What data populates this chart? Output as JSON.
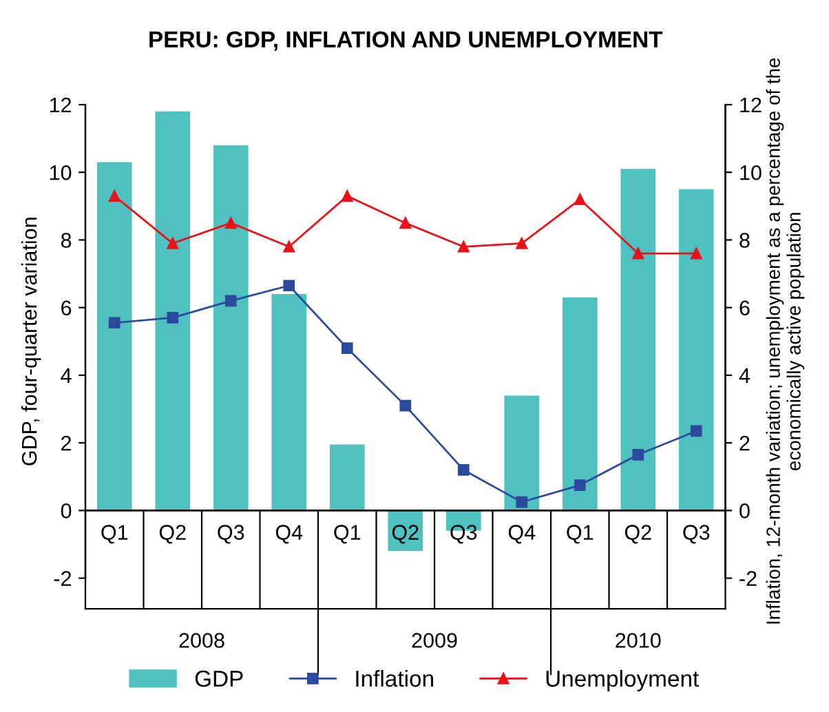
{
  "chart_data": {
    "type": "bar",
    "title": "PERU: GDP, INFLATION AND UNEMPLOYMENT",
    "ylabel": "GDP, four-quarter variation",
    "y2label": "Inflation, 12-month variation; unemployment as a percentage of the economically active population",
    "categories": [
      "Q1",
      "Q2",
      "Q3",
      "Q4",
      "Q1",
      "Q2",
      "Q3",
      "Q4",
      "Q1",
      "Q2",
      "Q3"
    ],
    "annotations": [
      "2008",
      "2009",
      "2010"
    ],
    "series": [
      {
        "name": "GDP",
        "color": "#4fc1c1",
        "values": [
          10.3,
          11.8,
          10.8,
          6.4,
          1.95,
          -1.2,
          -0.6,
          3.4,
          6.3,
          10.1,
          9.5
        ]
      },
      {
        "name": "Inflation",
        "type": "line",
        "marker": "square",
        "color": "#2b4a9b",
        "values": [
          5.55,
          5.7,
          6.2,
          6.65,
          4.8,
          3.1,
          1.2,
          0.25,
          0.75,
          1.65,
          2.35
        ]
      },
      {
        "name": "Unemployment",
        "type": "line",
        "marker": "triangle",
        "color": "#e8121b",
        "values": [
          9.3,
          7.9,
          8.5,
          7.8,
          9.3,
          8.5,
          7.8,
          7.9,
          9.2,
          7.6,
          7.6
        ]
      }
    ],
    "ylim": [
      -2,
      12
    ],
    "yticks": [
      -2,
      0,
      2,
      4,
      6,
      8,
      10,
      12
    ],
    "y2lim": [
      -2,
      12
    ],
    "y2ticks": [
      -2,
      0,
      2,
      4,
      6,
      8,
      10,
      12
    ],
    "grid": false,
    "legend": "bottom",
    "line_style": "solid"
  }
}
